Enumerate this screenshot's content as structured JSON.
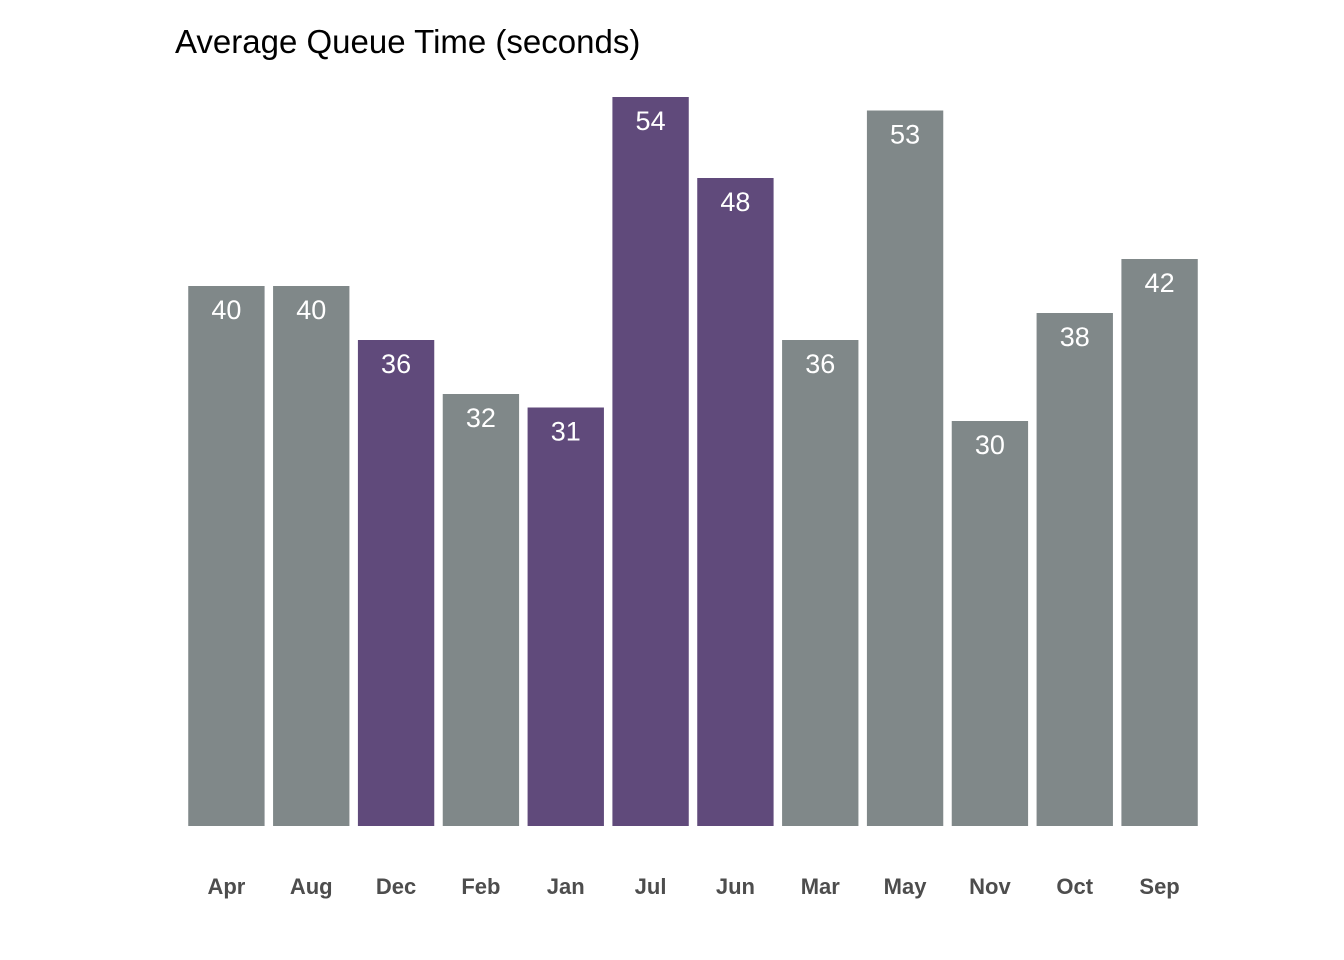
{
  "chart_data": {
    "type": "bar",
    "title": "Average Queue Time (seconds)",
    "xlabel": "",
    "ylabel": "",
    "categories": [
      "Apr",
      "Aug",
      "Dec",
      "Feb",
      "Jan",
      "Jul",
      "Jun",
      "Mar",
      "May",
      "Nov",
      "Oct",
      "Sep"
    ],
    "values": [
      40,
      40,
      36,
      32,
      31,
      54,
      48,
      36,
      53,
      30,
      38,
      42
    ],
    "highlighted": [
      false,
      false,
      true,
      false,
      true,
      true,
      true,
      false,
      false,
      false,
      false,
      false
    ],
    "ylim": [
      0,
      56
    ],
    "grid": false,
    "legend": "none",
    "colors": {
      "base": "#808889",
      "highlight": "#604a7b",
      "value_label": "#ffffff",
      "tick_label": "#4d4d4d"
    }
  }
}
